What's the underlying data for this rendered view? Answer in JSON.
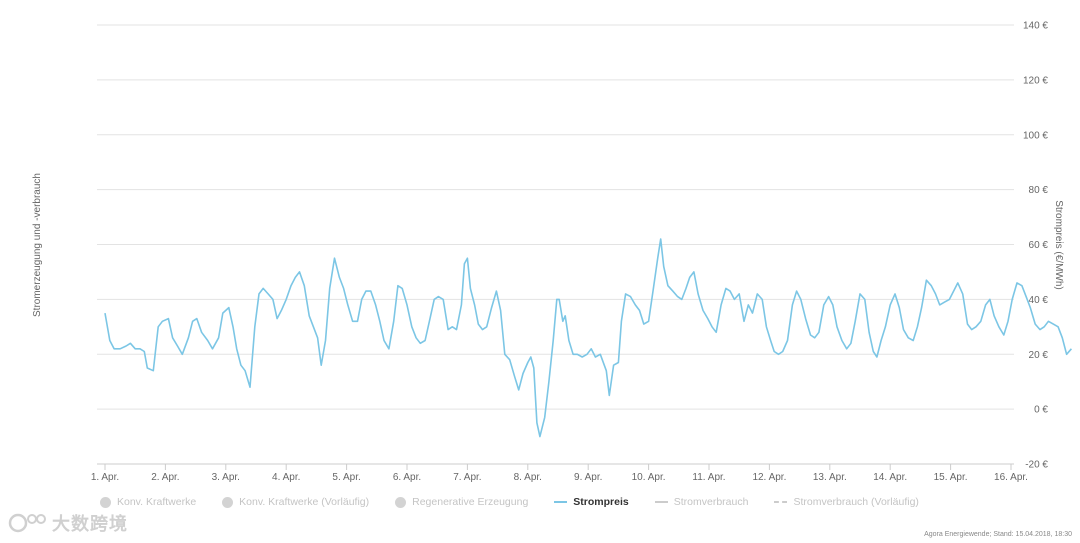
{
  "chart_data": {
    "type": "line",
    "y_axis_left_label": "Stromerzeugung und -verbrauch",
    "y_axis_right_label": "Strompreis (€/MWh)",
    "ylim": [
      -20,
      140
    ],
    "y_ticks": [
      -20,
      0,
      20,
      40,
      60,
      80,
      100,
      120,
      140
    ],
    "y_tick_labels": [
      "-20 €",
      "0 €",
      "20 €",
      "40 €",
      "60 €",
      "80 €",
      "100 €",
      "120 €",
      "140 €"
    ],
    "x_tick_labels": [
      "1. Apr.",
      "2. Apr.",
      "3. Apr.",
      "4. Apr.",
      "5. Apr.",
      "6. Apr.",
      "7. Apr.",
      "8. Apr.",
      "9. Apr.",
      "10. Apr.",
      "11. Apr.",
      "12. Apr.",
      "13. Apr.",
      "14. Apr.",
      "15. Apr.",
      "16. Apr."
    ],
    "xlim_days": [
      1,
      16
    ],
    "grid": true,
    "legend_position": "bottom",
    "series": [
      {
        "name": "Strompreis",
        "color": "#7cc6e5",
        "points": [
          [
            1.0,
            35
          ],
          [
            1.08,
            25
          ],
          [
            1.15,
            22
          ],
          [
            1.25,
            22
          ],
          [
            1.35,
            23
          ],
          [
            1.42,
            24
          ],
          [
            1.5,
            22
          ],
          [
            1.58,
            22
          ],
          [
            1.65,
            21
          ],
          [
            1.7,
            15
          ],
          [
            1.8,
            14
          ],
          [
            1.88,
            30
          ],
          [
            1.95,
            32
          ],
          [
            2.05,
            33
          ],
          [
            2.12,
            26
          ],
          [
            2.2,
            23
          ],
          [
            2.28,
            20
          ],
          [
            2.38,
            26
          ],
          [
            2.45,
            32
          ],
          [
            2.52,
            33
          ],
          [
            2.6,
            28
          ],
          [
            2.7,
            25
          ],
          [
            2.78,
            22
          ],
          [
            2.88,
            26
          ],
          [
            2.95,
            35
          ],
          [
            3.05,
            37
          ],
          [
            3.12,
            30
          ],
          [
            3.18,
            22
          ],
          [
            3.25,
            16
          ],
          [
            3.32,
            14
          ],
          [
            3.4,
            8
          ],
          [
            3.48,
            30
          ],
          [
            3.55,
            42
          ],
          [
            3.62,
            44
          ],
          [
            3.7,
            42
          ],
          [
            3.78,
            40
          ],
          [
            3.85,
            33
          ],
          [
            3.92,
            36
          ],
          [
            4.0,
            40
          ],
          [
            4.08,
            45
          ],
          [
            4.15,
            48
          ],
          [
            4.22,
            50
          ],
          [
            4.3,
            45
          ],
          [
            4.38,
            34
          ],
          [
            4.45,
            30
          ],
          [
            4.52,
            26
          ],
          [
            4.58,
            16
          ],
          [
            4.65,
            25
          ],
          [
            4.72,
            44
          ],
          [
            4.8,
            55
          ],
          [
            4.88,
            48
          ],
          [
            4.95,
            44
          ],
          [
            5.02,
            38
          ],
          [
            5.1,
            32
          ],
          [
            5.18,
            32
          ],
          [
            5.25,
            40
          ],
          [
            5.32,
            43
          ],
          [
            5.4,
            43
          ],
          [
            5.48,
            38
          ],
          [
            5.55,
            32
          ],
          [
            5.62,
            25
          ],
          [
            5.7,
            22
          ],
          [
            5.78,
            32
          ],
          [
            5.85,
            45
          ],
          [
            5.92,
            44
          ],
          [
            6.0,
            38
          ],
          [
            6.08,
            30
          ],
          [
            6.15,
            26
          ],
          [
            6.22,
            24
          ],
          [
            6.3,
            25
          ],
          [
            6.38,
            33
          ],
          [
            6.45,
            40
          ],
          [
            6.52,
            41
          ],
          [
            6.6,
            40
          ],
          [
            6.68,
            29
          ],
          [
            6.75,
            30
          ],
          [
            6.82,
            29
          ],
          [
            6.9,
            38
          ],
          [
            6.95,
            53
          ],
          [
            7.0,
            55
          ],
          [
            7.05,
            44
          ],
          [
            7.12,
            38
          ],
          [
            7.18,
            31
          ],
          [
            7.25,
            29
          ],
          [
            7.32,
            30
          ],
          [
            7.4,
            37
          ],
          [
            7.48,
            43
          ],
          [
            7.55,
            36
          ],
          [
            7.62,
            20
          ],
          [
            7.7,
            18
          ],
          [
            7.78,
            12
          ],
          [
            7.85,
            7
          ],
          [
            7.92,
            13
          ],
          [
            8.0,
            17
          ],
          [
            8.05,
            19
          ],
          [
            8.1,
            15
          ],
          [
            8.15,
            -5
          ],
          [
            8.2,
            -10
          ],
          [
            8.28,
            -3
          ],
          [
            8.35,
            10
          ],
          [
            8.42,
            25
          ],
          [
            8.48,
            40
          ],
          [
            8.52,
            40
          ],
          [
            8.58,
            32
          ],
          [
            8.62,
            34
          ],
          [
            8.68,
            25
          ],
          [
            8.75,
            20
          ],
          [
            8.82,
            20
          ],
          [
            8.9,
            19
          ],
          [
            8.98,
            20
          ],
          [
            9.05,
            22
          ],
          [
            9.12,
            19
          ],
          [
            9.2,
            20
          ],
          [
            9.3,
            14
          ],
          [
            9.35,
            5
          ],
          [
            9.42,
            16
          ],
          [
            9.5,
            17
          ],
          [
            9.55,
            32
          ],
          [
            9.62,
            42
          ],
          [
            9.7,
            41
          ],
          [
            9.78,
            38
          ],
          [
            9.85,
            36
          ],
          [
            9.92,
            31
          ],
          [
            10.0,
            32
          ],
          [
            10.08,
            44
          ],
          [
            10.15,
            55
          ],
          [
            10.2,
            62
          ],
          [
            10.25,
            52
          ],
          [
            10.32,
            45
          ],
          [
            10.4,
            43
          ],
          [
            10.48,
            41
          ],
          [
            10.55,
            40
          ],
          [
            10.62,
            44
          ],
          [
            10.68,
            48
          ],
          [
            10.75,
            50
          ],
          [
            10.82,
            42
          ],
          [
            10.9,
            36
          ],
          [
            10.98,
            33
          ],
          [
            11.05,
            30
          ],
          [
            11.12,
            28
          ],
          [
            11.2,
            38
          ],
          [
            11.28,
            44
          ],
          [
            11.35,
            43
          ],
          [
            11.42,
            40
          ],
          [
            11.5,
            42
          ],
          [
            11.58,
            32
          ],
          [
            11.65,
            38
          ],
          [
            11.72,
            35
          ],
          [
            11.8,
            42
          ],
          [
            11.88,
            40
          ],
          [
            11.95,
            30
          ],
          [
            12.02,
            25
          ],
          [
            12.08,
            21
          ],
          [
            12.15,
            20
          ],
          [
            12.22,
            21
          ],
          [
            12.3,
            25
          ],
          [
            12.38,
            38
          ],
          [
            12.45,
            43
          ],
          [
            12.52,
            40
          ],
          [
            12.6,
            33
          ],
          [
            12.68,
            27
          ],
          [
            12.75,
            26
          ],
          [
            12.82,
            28
          ],
          [
            12.9,
            38
          ],
          [
            12.98,
            41
          ],
          [
            13.05,
            38
          ],
          [
            13.12,
            30
          ],
          [
            13.2,
            25
          ],
          [
            13.28,
            22
          ],
          [
            13.35,
            24
          ],
          [
            13.42,
            32
          ],
          [
            13.5,
            42
          ],
          [
            13.58,
            40
          ],
          [
            13.65,
            28
          ],
          [
            13.72,
            21
          ],
          [
            13.78,
            19
          ],
          [
            13.85,
            25
          ],
          [
            13.92,
            30
          ],
          [
            14.0,
            38
          ],
          [
            14.08,
            42
          ],
          [
            14.15,
            37
          ],
          [
            14.22,
            29
          ],
          [
            14.3,
            26
          ],
          [
            14.38,
            25
          ],
          [
            14.45,
            30
          ],
          [
            14.52,
            37
          ],
          [
            14.6,
            47
          ],
          [
            14.68,
            45
          ],
          [
            14.75,
            42
          ],
          [
            14.82,
            38
          ],
          [
            14.9,
            39
          ],
          [
            14.98,
            40
          ],
          [
            15.05,
            43
          ],
          [
            15.12,
            46
          ],
          [
            15.2,
            42
          ],
          [
            15.28,
            31
          ],
          [
            15.35,
            29
          ],
          [
            15.42,
            30
          ],
          [
            15.5,
            32
          ],
          [
            15.58,
            38
          ],
          [
            15.65,
            40
          ],
          [
            15.72,
            34
          ],
          [
            15.8,
            30
          ],
          [
            15.88,
            27
          ],
          [
            15.95,
            32
          ],
          [
            16.02,
            40
          ],
          [
            16.1,
            46
          ],
          [
            16.18,
            45
          ],
          [
            16.25,
            41
          ],
          [
            16.32,
            37
          ],
          [
            16.4,
            31
          ],
          [
            16.48,
            29
          ],
          [
            16.55,
            30
          ],
          [
            16.62,
            32
          ],
          [
            16.7,
            31
          ],
          [
            16.78,
            30
          ],
          [
            16.85,
            26
          ],
          [
            16.92,
            20
          ],
          [
            17.0,
            22
          ]
        ]
      }
    ]
  },
  "legend": {
    "items": [
      {
        "label": "Konv. Kraftwerke",
        "marker": "dot",
        "active": false
      },
      {
        "label": "Konv. Kraftwerke (Vorläufig)",
        "marker": "dot",
        "active": false
      },
      {
        "label": "Regenerative Erzeugung",
        "marker": "dot",
        "active": false
      },
      {
        "label": "Strompreis",
        "marker": "line",
        "active": true
      },
      {
        "label": "Stromverbrauch",
        "marker": "line",
        "active": false
      },
      {
        "label": "Stromverbrauch (Vorläufig)",
        "marker": "dash",
        "active": false
      }
    ]
  },
  "credit": "Agora Energiewende; Stand: 15.04.2018, 18:30",
  "watermark": "大数跨境"
}
